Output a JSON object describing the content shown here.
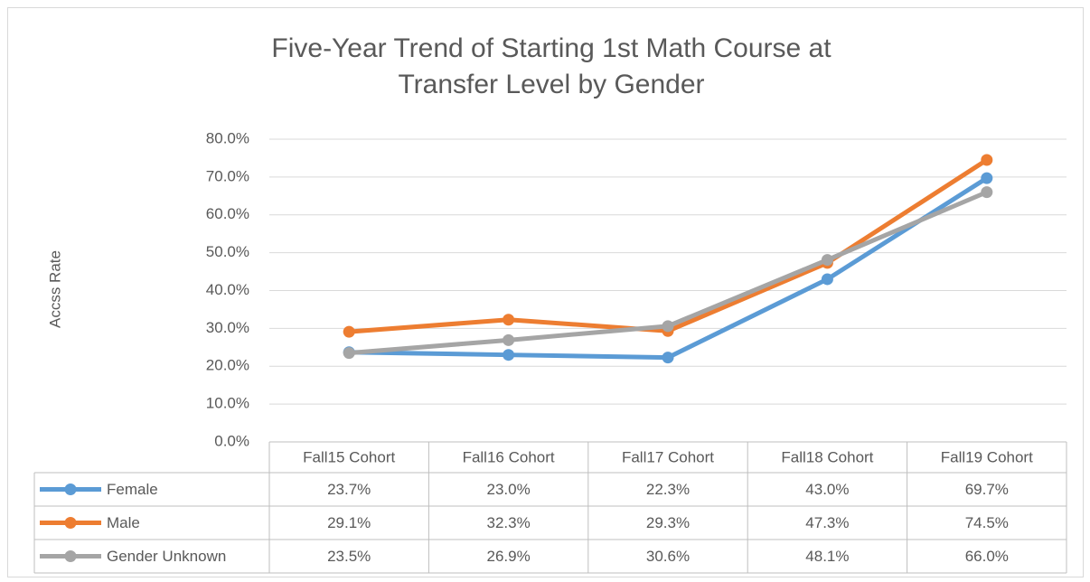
{
  "chart_data": {
    "type": "line",
    "title": "Five-Year Trend of  Starting 1st Math Course at Transfer Level by Gender",
    "ylabel": "Accss Rate",
    "categories": [
      "Fall15 Cohort",
      "Fall16 Cohort",
      "Fall17 Cohort",
      "Fall18 Cohort",
      "Fall19 Cohort"
    ],
    "series": [
      {
        "name": "Female",
        "color": "#5b9bd5",
        "values": [
          23.7,
          23.0,
          22.3,
          43.0,
          69.7
        ],
        "value_labels": [
          "23.7%",
          "23.0%",
          "22.3%",
          "43.0%",
          "69.7%"
        ]
      },
      {
        "name": "Male",
        "color": "#ed7d31",
        "values": [
          29.1,
          32.3,
          29.3,
          47.3,
          74.5
        ],
        "value_labels": [
          "29.1%",
          "32.3%",
          "29.3%",
          "47.3%",
          "74.5%"
        ]
      },
      {
        "name": "Gender Unknown",
        "color": "#a5a5a5",
        "values": [
          23.5,
          26.9,
          30.6,
          48.1,
          66.0
        ],
        "value_labels": [
          "23.5%",
          "26.9%",
          "30.6%",
          "48.1%",
          "66.0%"
        ]
      }
    ],
    "ylim": [
      0,
      80
    ],
    "yticks": [
      {
        "value": 0,
        "label": "0.0%"
      },
      {
        "value": 10,
        "label": "10.0%"
      },
      {
        "value": 20,
        "label": "20.0%"
      },
      {
        "value": 30,
        "label": "30.0%"
      },
      {
        "value": 40,
        "label": "40.0%"
      },
      {
        "value": 50,
        "label": "50.0%"
      },
      {
        "value": 60,
        "label": "60.0%"
      },
      {
        "value": 70,
        "label": "70.0%"
      },
      {
        "value": 80,
        "label": "80.0%"
      }
    ],
    "grid": true
  }
}
